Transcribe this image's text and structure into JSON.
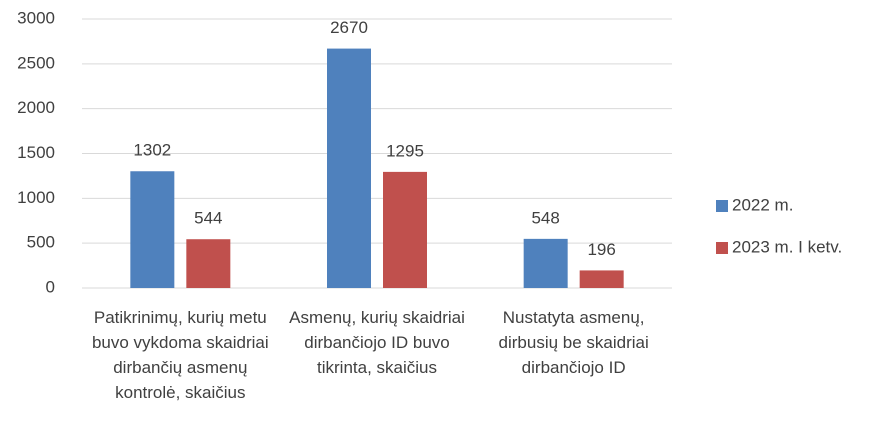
{
  "chart_data": {
    "type": "bar",
    "categories": [
      "Patikrinimų, kurių metu buvo vykdoma skaidriai dirbančių asmenų kontrolė, skaičius",
      "Asmenų, kurių skaidriai dirbančiojo ID buvo tikrinta, skaičius",
      "Nustatyta asmenų, dirbusių be skaidriai dirbančiojo ID"
    ],
    "series": [
      {
        "name": "2022 m.",
        "color": "#4f81bd",
        "values": [
          1302,
          2670,
          548
        ]
      },
      {
        "name": "2023 m. I ketv.",
        "color": "#c0504d",
        "values": [
          544,
          1295,
          196
        ]
      }
    ],
    "ylim": [
      0,
      3000
    ],
    "yticks": [
      0,
      500,
      1000,
      1500,
      2000,
      2500,
      3000
    ],
    "grid": true,
    "legend": "right"
  }
}
